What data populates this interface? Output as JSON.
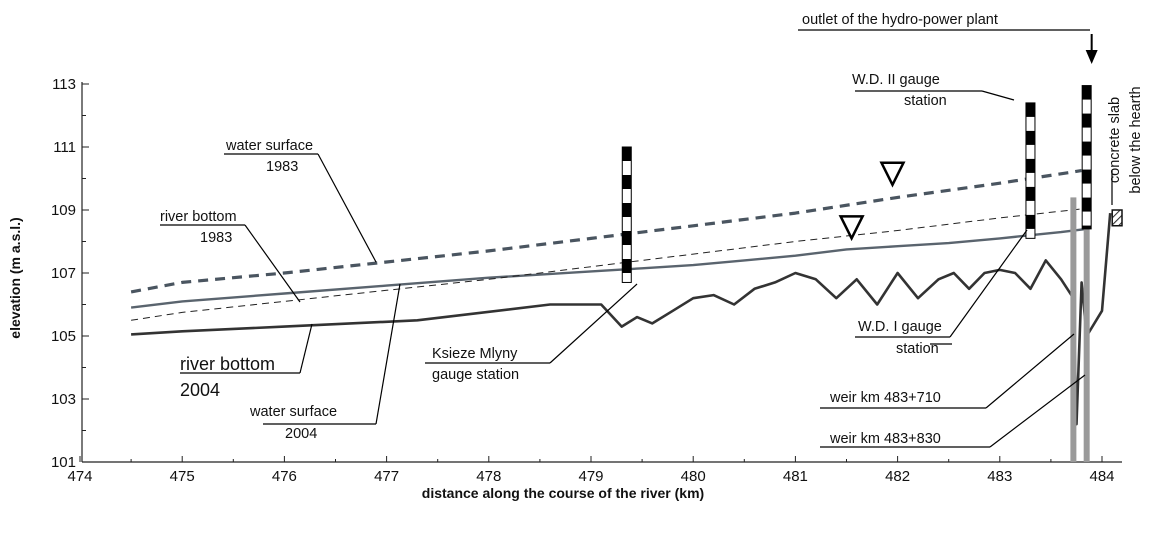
{
  "chart_data": {
    "type": "line",
    "xlabel": "distance along the course of the river (km)",
    "ylabel": "elevation (m a.s.l.)",
    "xlim": [
      474,
      484.5
    ],
    "ylim": [
      101,
      113
    ],
    "xticks": [
      474,
      475,
      476,
      477,
      478,
      479,
      480,
      481,
      482,
      483,
      484
    ],
    "yticks": [
      101,
      103,
      105,
      107,
      109,
      111,
      113
    ],
    "grid": false,
    "series": [
      {
        "id": "water_surface_1983",
        "style": "dashed-thick",
        "color": "#4a5560",
        "x": [
          474.5,
          475,
          476,
          477,
          478,
          479,
          480,
          481,
          482,
          483,
          483.8
        ],
        "y": [
          106.4,
          106.7,
          107.0,
          107.35,
          107.7,
          108.1,
          108.5,
          108.9,
          109.4,
          109.85,
          110.25
        ]
      },
      {
        "id": "river_bottom_1983",
        "style": "solid",
        "color": "#5a646e",
        "x": [
          474.5,
          475,
          476,
          477,
          478,
          479,
          479.5,
          480,
          480.5,
          481,
          481.5,
          482,
          482.5,
          483,
          483.3,
          483.6,
          483.85
        ],
        "y": [
          105.9,
          106.1,
          106.35,
          106.6,
          106.85,
          107.05,
          107.15,
          107.25,
          107.4,
          107.55,
          107.75,
          107.85,
          107.95,
          108.1,
          108.2,
          108.3,
          108.4
        ]
      },
      {
        "id": "water_surface_2004",
        "style": "dashed-thin",
        "color": "#222222",
        "x": [
          474.5,
          475,
          476,
          477,
          478,
          479,
          480,
          481,
          482,
          483,
          483.85
        ],
        "y": [
          105.5,
          105.75,
          106.1,
          106.45,
          106.8,
          107.2,
          107.6,
          108.0,
          108.35,
          108.75,
          109.05
        ]
      },
      {
        "id": "river_bottom_2004",
        "style": "solid-thick",
        "color": "#333333",
        "x": [
          474.5,
          475,
          476,
          477.3,
          478.6,
          479.1,
          479.3,
          479.45,
          479.6,
          479.8,
          480,
          480.2,
          480.4,
          480.6,
          480.8,
          481,
          481.2,
          481.4,
          481.6,
          481.8,
          482,
          482.2,
          482.4,
          482.55,
          482.7,
          482.85,
          483,
          483.15,
          483.3,
          483.45,
          483.6,
          483.72,
          483.75,
          483.8,
          483.85,
          484.0,
          484.08
        ],
        "y": [
          105.05,
          105.15,
          105.3,
          105.5,
          106.0,
          106.0,
          105.3,
          105.6,
          105.4,
          105.8,
          106.2,
          106.3,
          106.0,
          106.5,
          106.7,
          107.0,
          106.8,
          106.2,
          106.8,
          106.0,
          107.0,
          106.2,
          106.8,
          107.0,
          106.5,
          107.0,
          107.1,
          107.0,
          106.5,
          107.4,
          106.8,
          106.2,
          102.2,
          106.7,
          105.0,
          105.8,
          108.9
        ]
      }
    ],
    "gauge_poles": [
      {
        "x": 479.35,
        "y_bottom": 106.7,
        "y_top": 111.0
      },
      {
        "x": 483.3,
        "y_bottom": 108.1,
        "y_top": 112.4
      },
      {
        "x": 483.85,
        "y_bottom": 108.4,
        "y_top": 112.95
      }
    ],
    "weirs": [
      {
        "x": 483.72,
        "y_top": 109.4
      },
      {
        "x": 483.85,
        "y_top": 109.4
      }
    ],
    "water_level_markers": [
      {
        "x": 481.55,
        "y": 108.1
      },
      {
        "x": 481.95,
        "y": 109.8
      }
    ],
    "concrete_slab": {
      "x_start": 484.1,
      "y_bottom": 108.5,
      "y_top": 109.0
    },
    "labels": {
      "water_surface_1983": [
        "water surface",
        "1983"
      ],
      "river_bottom_1983": [
        "river bottom",
        "1983"
      ],
      "river_bottom_2004": [
        "river bottom",
        "2004"
      ],
      "water_surface_2004": [
        "water surface",
        "2004"
      ],
      "ksieze_mlyny": [
        "Ksieze Mlyny",
        "gauge station"
      ],
      "wd2": [
        "W.D. II gauge",
        "station"
      ],
      "wd1": [
        "W.D. I gauge",
        "station"
      ],
      "weir1": "weir km 483+710",
      "weir2": "weir km 483+830",
      "outlet": "outlet of the hydro-power plant",
      "slab": [
        "concrete slab",
        "below the hearth"
      ]
    }
  }
}
